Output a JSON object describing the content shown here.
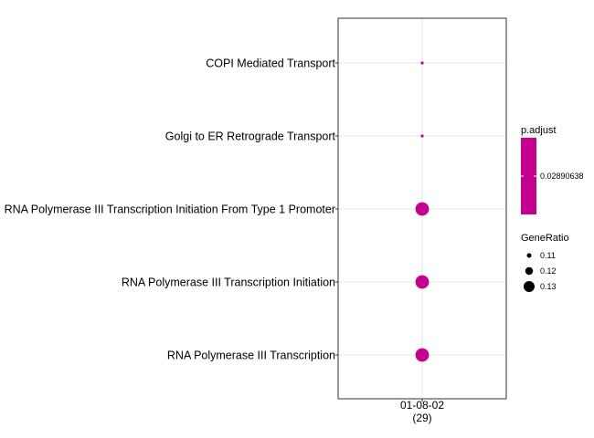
{
  "chart_data": {
    "type": "scatter",
    "title": "",
    "xlabel": "",
    "ylabel": "",
    "categories_x": [
      "01-08-02\n(29)"
    ],
    "x_tick_lines": [
      "01-08-02",
      "(29)"
    ],
    "categories_y": [
      "COPI Mediated Transport",
      "Golgi to ER Retrograde Transport",
      "RNA Polymerase III Transcription Initiation From Type 1 Promoter",
      "RNA Polymerase III Transcription Initiation",
      "RNA Polymerase III Transcription"
    ],
    "points": [
      {
        "x": "01-08-02",
        "y": "COPI Mediated Transport",
        "gene_ratio": 0.105,
        "p_adjust": 0.02890638
      },
      {
        "x": "01-08-02",
        "y": "Golgi to ER Retrograde Transport",
        "gene_ratio": 0.105,
        "p_adjust": 0.02890638
      },
      {
        "x": "01-08-02",
        "y": "RNA Polymerase III Transcription Initiation From Type 1 Promoter",
        "gene_ratio": 0.138,
        "p_adjust": 0.02890638
      },
      {
        "x": "01-08-02",
        "y": "RNA Polymerase III Transcription Initiation",
        "gene_ratio": 0.138,
        "p_adjust": 0.02890638
      },
      {
        "x": "01-08-02",
        "y": "RNA Polymerase III Transcription",
        "gene_ratio": 0.138,
        "p_adjust": 0.02890638
      }
    ],
    "color_legend": {
      "title": "p.adjust",
      "ticks": [
        "0.02890638"
      ],
      "color": "#c4008f"
    },
    "size_legend": {
      "title": "GeneRatio",
      "values": [
        0.11,
        0.12,
        0.13
      ],
      "labels": [
        "0.11",
        "0.12",
        "0.13"
      ]
    },
    "grid": true,
    "legend_placement": "right"
  }
}
